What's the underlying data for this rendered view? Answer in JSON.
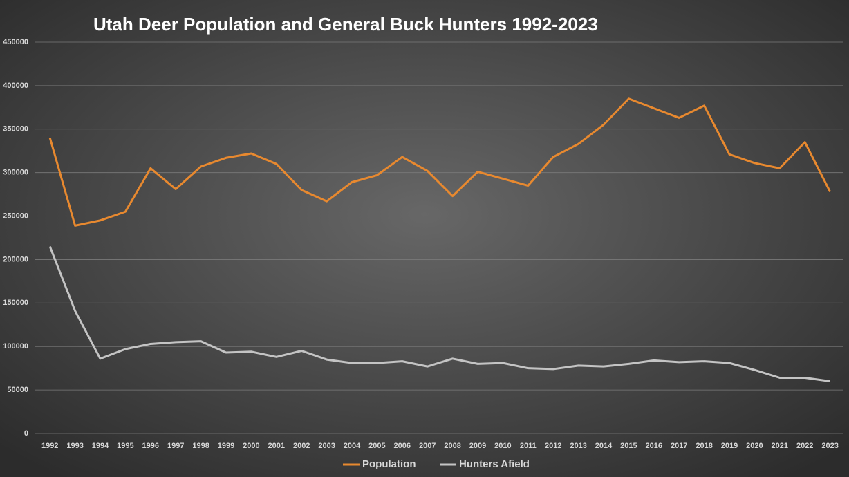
{
  "chart_data": {
    "type": "line",
    "title": "Utah Deer Population and General Buck Hunters 1992-2023",
    "categories": [
      "1992",
      "1993",
      "1994",
      "1995",
      "1996",
      "1997",
      "1998",
      "1999",
      "2000",
      "2001",
      "2002",
      "2003",
      "2004",
      "2005",
      "2006",
      "2007",
      "2008",
      "2009",
      "2010",
      "2011",
      "2012",
      "2013",
      "2014",
      "2015",
      "2016",
      "2017",
      "2018",
      "2019",
      "2020",
      "2021",
      "2022",
      "2023"
    ],
    "series": [
      {
        "name": "Population",
        "color": "#e8892f",
        "values": [
          340000,
          239000,
          245000,
          255000,
          305000,
          281000,
          307000,
          317000,
          322000,
          310000,
          280000,
          267000,
          289000,
          297000,
          318000,
          302000,
          273000,
          301000,
          293000,
          285000,
          318000,
          333000,
          355000,
          385000,
          374000,
          363000,
          377000,
          321000,
          311000,
          305000,
          335000,
          278000
        ]
      },
      {
        "name": "Hunters Afield",
        "color": "#c4c4c4",
        "values": [
          215000,
          141000,
          86000,
          97000,
          103000,
          105000,
          106000,
          93000,
          94000,
          88000,
          95000,
          85000,
          81000,
          81000,
          83000,
          77000,
          86000,
          80000,
          81000,
          75000,
          74000,
          78000,
          77000,
          80000,
          84000,
          82000,
          83000,
          81000,
          73000,
          64000,
          64000,
          60000
        ]
      }
    ],
    "ylim": [
      0,
      450000
    ],
    "yticks": [
      0,
      50000,
      100000,
      150000,
      200000,
      250000,
      300000,
      350000,
      400000,
      450000
    ],
    "grid": true,
    "legend": "bottom"
  }
}
